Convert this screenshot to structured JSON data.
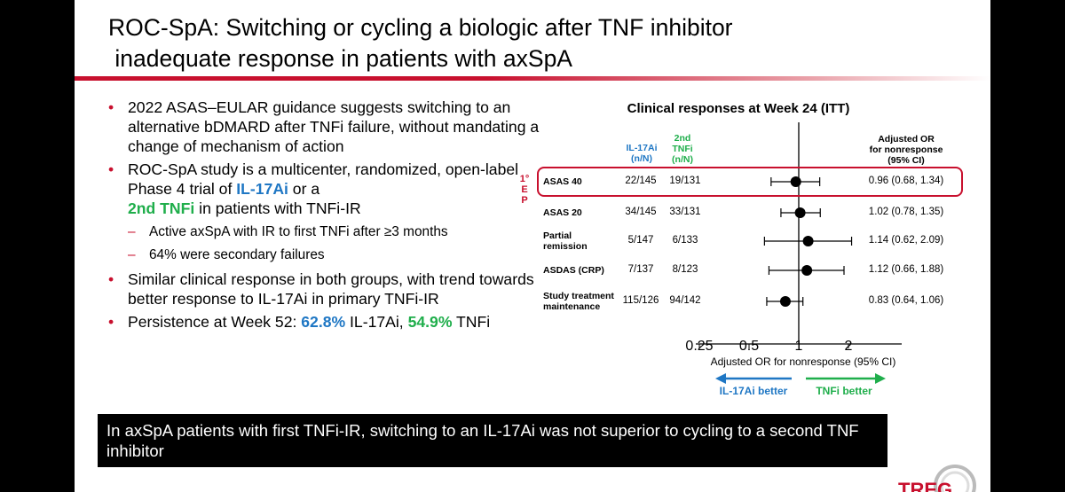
{
  "title_line1": "ROC-SpA: Switching or cycling a biologic after TNF inhibitor",
  "title_line2": " inadequate response in patients with axSpA",
  "bullets": {
    "b1": "2022 ASAS–EULAR guidance suggests switching to an alternative bDMARD after TNFi failure, without mandating a change of mechanism of action",
    "b2_pre": "ROC-SpA study is a multicenter, randomized, open-label Phase 4 trial of ",
    "b2_il17": "IL-17Ai",
    "b2_mid": " or a ",
    "b2_tnf": "2nd TNFi",
    "b2_post": " in patients with TNFi-IR",
    "sub1": "Active axSpA with IR to first TNFi after ≥3 months",
    "sub2": "64% were secondary failures",
    "b3": "Similar clinical response in both groups, with trend towards better response to IL-17Ai in primary TNFi-IR",
    "b4_pre": "Persistence at Week 52: ",
    "b4_il17_pct": "62.8%",
    "b4_mid": " IL-17Ai, ",
    "b4_tnf_pct": "54.9%",
    "b4_post": " TNFi",
    "bullet_glyph": "•",
    "dash_glyph": "–"
  },
  "conclusion": "In axSpA patients with first TNFi-IR, switching to an IL-17Ai was not superior to cycling to a second TNF inhibitor",
  "logo_text": "TREG",
  "chart_data": {
    "type": "forest",
    "title": "Clinical responses at Week 24 (ITT)",
    "col_il17": "IL-17Ai\n(n/N)",
    "col_tnf": "2nd\nTNFi\n(n/N)",
    "col_or": "Adjusted OR\nfor nonresponse\n(95% CI)",
    "primary_marker": "1°\nE\nP",
    "xlabel": "Adjusted OR for nonresponse (95% CI)",
    "xscale": "log",
    "xticks": [
      0.25,
      0.5,
      1,
      2
    ],
    "xtick_labels": [
      "0.25",
      "0.5",
      "1",
      "2"
    ],
    "xlim": [
      0.25,
      2.5
    ],
    "ref_line": 1,
    "favors_left": "IL-17Ai better",
    "favors_right": "TNFi better",
    "favors_left_color": "#1f77c4",
    "favors_right_color": "#1fae4b",
    "primary_box_color": "#c8102e",
    "rows": [
      {
        "label": "ASAS 40",
        "il17": "22/145",
        "tnf": "19/131",
        "or": 0.96,
        "lo": 0.68,
        "hi": 1.34,
        "text": "0.96 (0.68, 1.34)",
        "primary": true
      },
      {
        "label": "ASAS 20",
        "il17": "34/145",
        "tnf": "33/131",
        "or": 1.02,
        "lo": 0.78,
        "hi": 1.35,
        "text": "1.02 (0.78, 1.35)"
      },
      {
        "label": "Partial\nremission",
        "il17": "5/147",
        "tnf": "6/133",
        "or": 1.14,
        "lo": 0.62,
        "hi": 2.09,
        "text": "1.14 (0.62, 2.09)"
      },
      {
        "label": "ASDAS (CRP)",
        "il17": "7/137",
        "tnf": "8/123",
        "or": 1.12,
        "lo": 0.66,
        "hi": 1.88,
        "text": "1.12 (0.66, 1.88)"
      },
      {
        "label": "Study treatment\nmaintenance",
        "il17": "115/126",
        "tnf": "94/142",
        "or": 0.83,
        "lo": 0.64,
        "hi": 1.06,
        "text": "0.83 (0.64, 1.06)"
      }
    ]
  }
}
